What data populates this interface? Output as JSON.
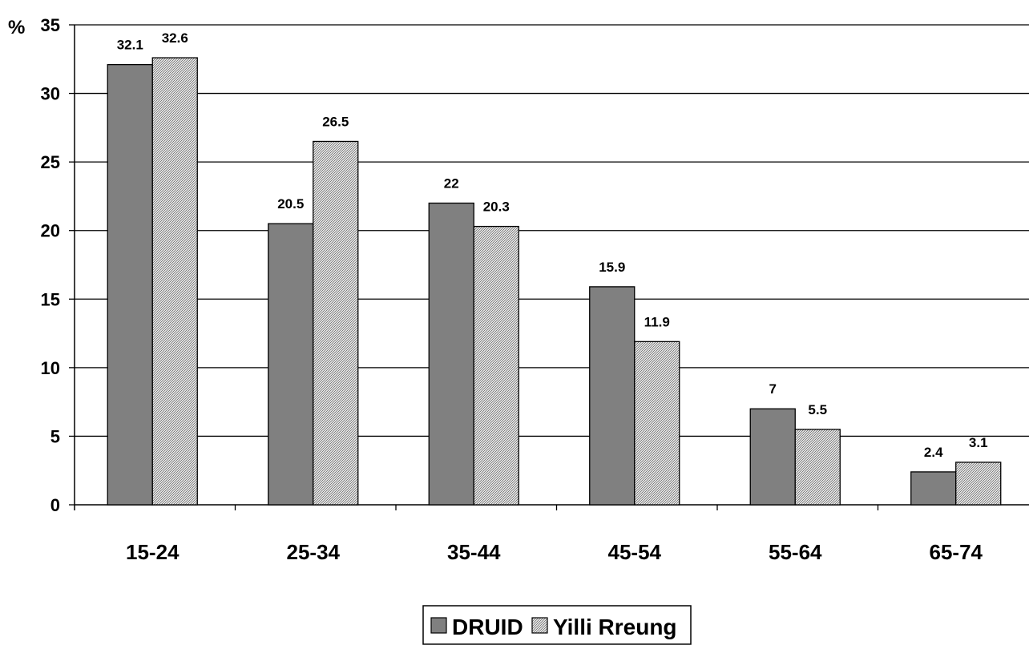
{
  "chart_data": {
    "type": "bar",
    "categories": [
      "15-24",
      "25-34",
      "35-44",
      "45-54",
      "55-64",
      "65-74"
    ],
    "series": [
      {
        "name": "DRUID",
        "values": [
          32.1,
          20.5,
          22,
          15.9,
          7,
          2.4
        ],
        "labels": [
          "32.1",
          "20.5",
          "22",
          "15.9",
          "7",
          "2.4"
        ],
        "color": "#808080",
        "pattern": "solid"
      },
      {
        "name": "Yilli Rreung",
        "values": [
          32.6,
          26.5,
          20.3,
          11.9,
          5.5,
          3.1
        ],
        "labels": [
          "32.6",
          "26.5",
          "20.3",
          "11.9",
          "5.5",
          "3.1"
        ],
        "color": "#c8c8c8",
        "pattern": "dense-diagonal-hatch"
      }
    ],
    "y_unit": "%",
    "ylim": [
      0,
      35
    ],
    "yticks": [
      0,
      5,
      10,
      15,
      20,
      25,
      30,
      35
    ],
    "ytick_labels": [
      "0",
      "5",
      "10",
      "15",
      "20",
      "25",
      "30",
      "35"
    ],
    "grid": true,
    "legend_position": "bottom-center"
  }
}
